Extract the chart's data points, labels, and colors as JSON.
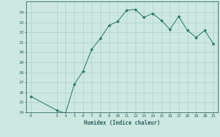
{
  "x": [
    0,
    3,
    4,
    5,
    6,
    7,
    8,
    9,
    10,
    11,
    12,
    13,
    14,
    15,
    16,
    17,
    18,
    19,
    20,
    21
  ],
  "y": [
    25.6,
    24.2,
    23.9,
    26.8,
    28.1,
    30.3,
    31.4,
    32.7,
    33.1,
    34.2,
    34.3,
    33.5,
    33.9,
    33.2,
    32.3,
    33.6,
    32.2,
    31.5,
    32.2,
    30.85
  ],
  "xlabel": "Humidex (Indice chaleur)",
  "ylabel": "",
  "line_color": "#2e7d6e",
  "marker_color": "#2e7d6e",
  "bg_color": "#cce8e0",
  "grid_color": "#aad0c8",
  "text_color": "#2e6060",
  "ylim": [
    24,
    35
  ],
  "xlim": [
    -0.5,
    21.5
  ],
  "yticks": [
    24,
    25,
    26,
    27,
    28,
    29,
    30,
    31,
    32,
    33,
    34
  ],
  "xticks": [
    0,
    3,
    4,
    5,
    6,
    7,
    8,
    9,
    10,
    11,
    12,
    13,
    14,
    15,
    16,
    17,
    18,
    19,
    20,
    21
  ]
}
